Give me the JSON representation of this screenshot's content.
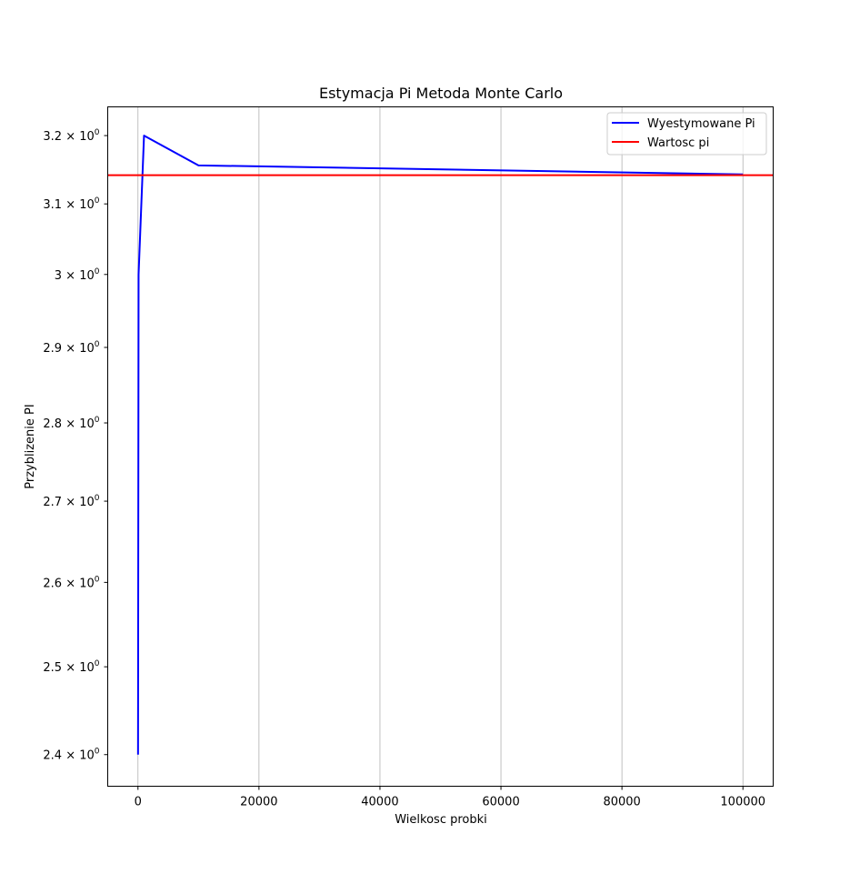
{
  "chart_data": {
    "type": "line",
    "title": "Estymacja Pi Metoda Monte Carlo",
    "xlabel": "Wielkosc probki",
    "ylabel": "Przyblizenie PI",
    "xlim": [
      -5000,
      105000
    ],
    "ylim": [
      2.365,
      3.243
    ],
    "yscale": "log",
    "grid": "x-only",
    "legend_position": "top-right",
    "x_ticks": [
      0,
      20000,
      40000,
      60000,
      80000,
      100000
    ],
    "x_tick_labels": [
      "0",
      "20000",
      "40000",
      "60000",
      "80000",
      "100000"
    ],
    "y_ticks": [
      2.4,
      2.5,
      2.6,
      2.7,
      2.8,
      2.9,
      3.0,
      3.1,
      3.2
    ],
    "y_tick_labels": [
      {
        "mantissa": "2.4",
        "exp": "0"
      },
      {
        "mantissa": "2.5",
        "exp": "0"
      },
      {
        "mantissa": "2.6",
        "exp": "0"
      },
      {
        "mantissa": "2.7",
        "exp": "0"
      },
      {
        "mantissa": "2.8",
        "exp": "0"
      },
      {
        "mantissa": "2.9",
        "exp": "0"
      },
      {
        "mantissa": "3",
        "exp": "0"
      },
      {
        "mantissa": "3.1",
        "exp": "0"
      },
      {
        "mantissa": "3.2",
        "exp": "0"
      }
    ],
    "series": [
      {
        "name": "Wyestymowane Pi",
        "color": "#0000ff",
        "x": [
          10,
          100,
          1000,
          10000,
          100000
        ],
        "y": [
          2.4,
          3.0,
          3.2,
          3.156,
          3.1428
        ]
      }
    ],
    "hlines": [
      {
        "name": "Wartosc pi",
        "color": "#ff0000",
        "y": 3.14159
      }
    ]
  }
}
